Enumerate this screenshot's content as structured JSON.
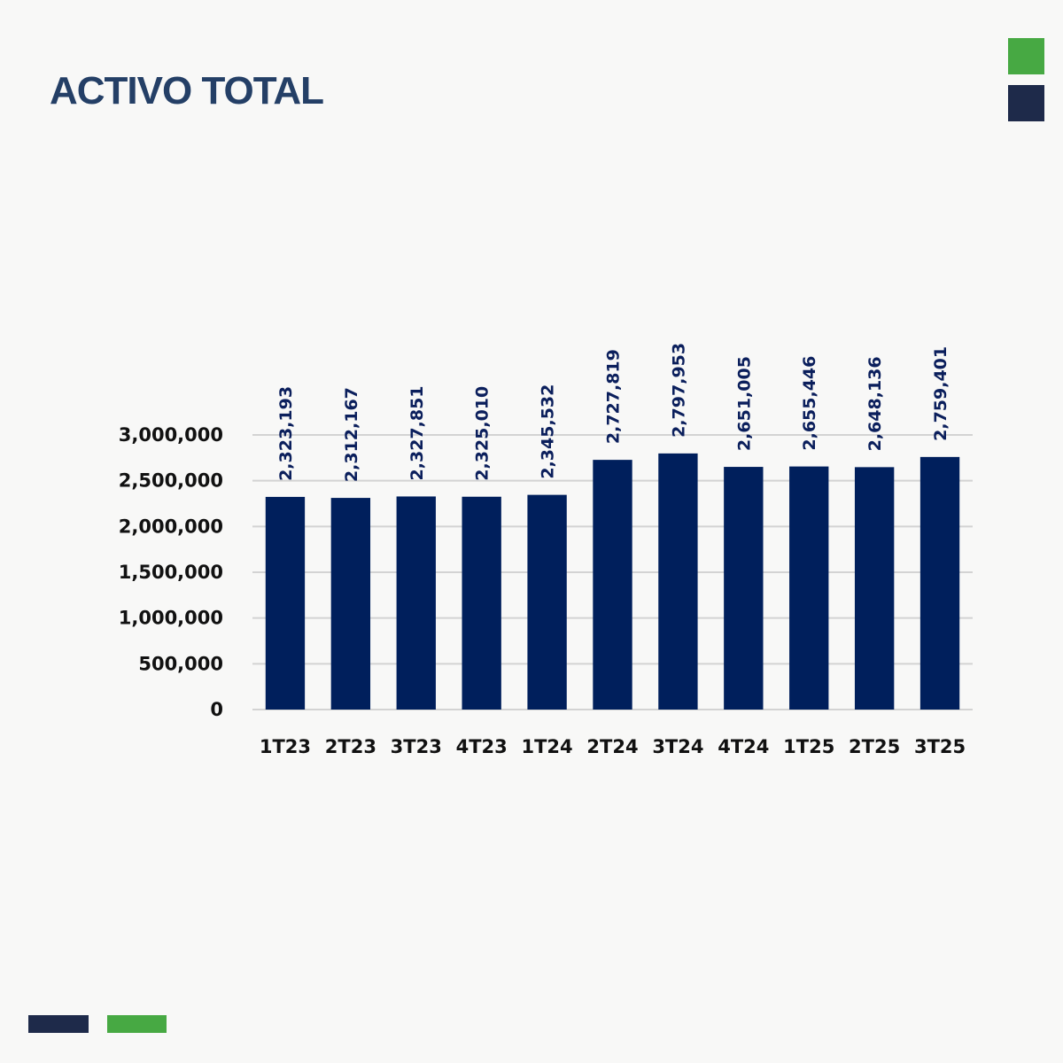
{
  "page": {
    "title": "ACTIVO TOTAL"
  },
  "colors": {
    "title": "#243f66",
    "bar": "#001f5c",
    "grid": "#d3d3d3",
    "accent_green": "#47a943",
    "accent_navy": "#1e2a4a"
  },
  "decorations": [
    {
      "name": "green-square",
      "color": "#47a943"
    },
    {
      "name": "navy-square",
      "color": "#1e2a4a"
    },
    {
      "name": "navy-bar",
      "color": "#1e2a4a"
    },
    {
      "name": "green-bar",
      "color": "#47a943"
    }
  ],
  "chart_data": {
    "type": "bar",
    "title": "",
    "xlabel": "",
    "ylabel": "",
    "categories": [
      "1T23",
      "2T23",
      "3T23",
      "4T23",
      "1T24",
      "2T24",
      "3T24",
      "4T24",
      "1T25",
      "2T25",
      "3T25"
    ],
    "values": [
      2323193,
      2312167,
      2327851,
      2325010,
      2345532,
      2727819,
      2797953,
      2651005,
      2655446,
      2648136,
      2759401
    ],
    "value_labels": [
      "2,323,193",
      "2,312,167",
      "2,327,851",
      "2,325,010",
      "2,345,532",
      "2,727,819",
      "2,797,953",
      "2,651,005",
      "2,655,446",
      "2,648,136",
      "2,759,401"
    ],
    "ylim": [
      0,
      3000000
    ],
    "yticks": [
      0,
      500000,
      1000000,
      1500000,
      2000000,
      2500000,
      3000000
    ],
    "ytick_labels": [
      "0",
      "500,000",
      "1,000,000",
      "1,500,000",
      "2,000,000",
      "2,500,000",
      "3,000,000"
    ],
    "grid": true,
    "legend": "none",
    "data_label_orientation": "vertical"
  }
}
